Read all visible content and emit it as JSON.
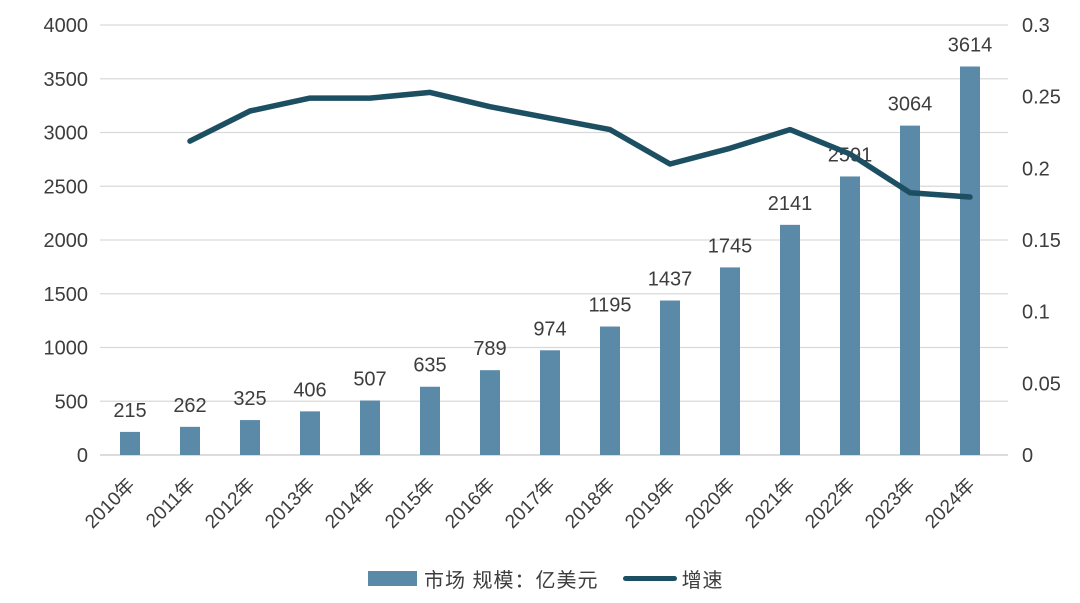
{
  "chart_data": {
    "type": "bar",
    "combo": "bar+line",
    "title": "",
    "categories": [
      "2010年",
      "2011年",
      "2012年",
      "2013年",
      "2014年",
      "2015年",
      "2016年",
      "2017年",
      "2018年",
      "2019年",
      "2020年",
      "2021年",
      "2022年",
      "2023年",
      "2024年"
    ],
    "series": [
      {
        "name": "市场 规模：亿美元",
        "type": "bar",
        "axis": "left",
        "color": "#5a8aa8",
        "values": [
          215,
          262,
          325,
          406,
          507,
          635,
          789,
          974,
          1195,
          1437,
          1745,
          2141,
          2591,
          3064,
          3614
        ],
        "data_labels_visible": true
      },
      {
        "name": "增速",
        "type": "line",
        "axis": "right",
        "color": "#1d4f63",
        "values": [
          null,
          0.219,
          0.24,
          0.249,
          0.249,
          0.253,
          0.243,
          0.235,
          0.227,
          0.203,
          0.214,
          0.227,
          0.21,
          0.183,
          0.18
        ],
        "data_labels_visible": false
      }
    ],
    "left_axis": {
      "min": 0,
      "max": 4000,
      "step": 500,
      "tick_labels": [
        "4000",
        "3500",
        "3000",
        "2500",
        "2000",
        "1500",
        "1000",
        "500",
        "0"
      ]
    },
    "right_axis": {
      "min": 0,
      "max": 0.3,
      "step": 0.05,
      "tick_labels": [
        "0.3",
        "0.25",
        "0.2",
        "0.15",
        "0.1",
        "0.05",
        "0"
      ]
    },
    "grid": true,
    "grid_color": "#d9d9d9",
    "axis_line_color": "#c6c6c6",
    "text_color": "#3d3d3d",
    "xlabel": "",
    "ylabel_left": "",
    "ylabel_right": "",
    "legend_position": "bottom",
    "x_tick_rotation_deg": 45
  },
  "legend": {
    "items": [
      {
        "label": "市场 规模：亿美元",
        "swatch": "bar",
        "color": "#5a8aa8"
      },
      {
        "label": "增速",
        "swatch": "line",
        "color": "#1d4f63"
      }
    ]
  }
}
